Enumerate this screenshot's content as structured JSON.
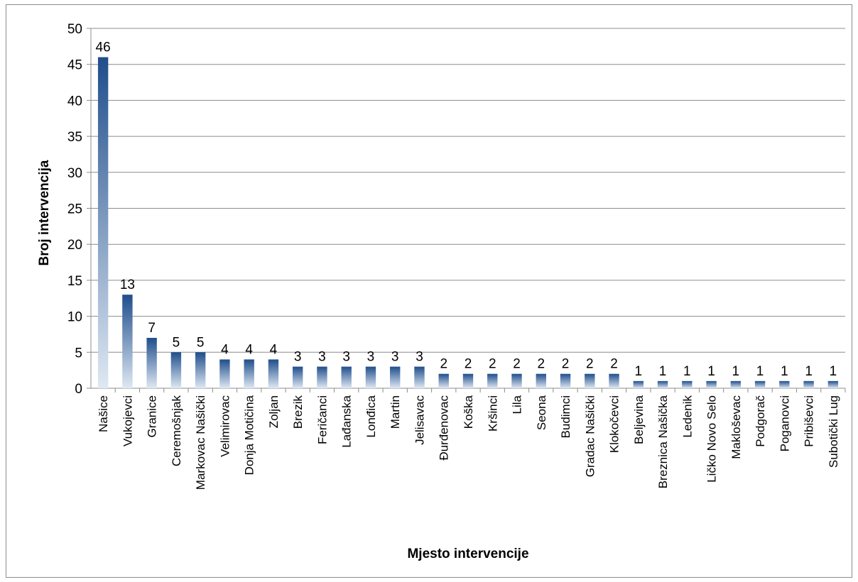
{
  "chart_data": {
    "type": "bar",
    "title": "",
    "xlabel": "Mjesto intervencije",
    "ylabel": "Broj intervencija",
    "ylim": [
      0,
      50
    ],
    "yticks": [
      0,
      5,
      10,
      15,
      20,
      25,
      30,
      35,
      40,
      45,
      50
    ],
    "grid": true,
    "legend": "none",
    "bar_color_top": "#1f4e8c",
    "bar_color_bottom": "#dfe8f3",
    "categories": [
      "Našice",
      "Vukojevci",
      "Granice",
      "Ceremošnjak",
      "Markovac Našički",
      "Velimirovac",
      "Donja Motičina",
      "Zoljan",
      "Brezik",
      "Feričanci",
      "Lađanska",
      "Lonđica",
      "Martin",
      "Jelisavac",
      "Đurđenovac",
      "Koška",
      "Kršinci",
      "Lila",
      "Seona",
      "Budimci",
      "Gradac Našički",
      "Klokočevci",
      "Beljevina",
      "Breznica Našička",
      "Ledenik",
      "Ličko Novo Selo",
      "Makloševac",
      "Podgorač",
      "Poganovci",
      "Pribiševci",
      "Subotički Lug"
    ],
    "values": [
      46,
      13,
      7,
      5,
      5,
      4,
      4,
      4,
      3,
      3,
      3,
      3,
      3,
      3,
      2,
      2,
      2,
      2,
      2,
      2,
      2,
      2,
      1,
      1,
      1,
      1,
      1,
      1,
      1,
      1,
      1
    ]
  }
}
